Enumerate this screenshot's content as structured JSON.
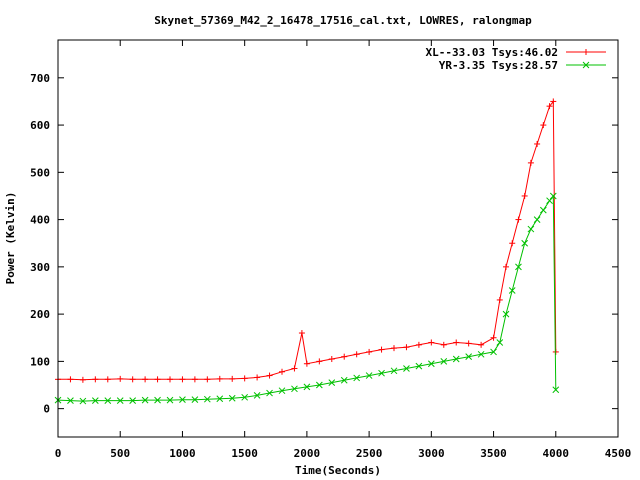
{
  "chart_data": {
    "type": "line",
    "title": "Skynet_57369_M42_2_16478_17516_cal.txt, LOWRES, ralongmap",
    "xlabel": "Time(Seconds)",
    "ylabel": "Power (Kelvin)",
    "xlim": [
      0,
      4500
    ],
    "ylim": [
      -60,
      780
    ],
    "xticks": [
      0,
      500,
      1000,
      1500,
      2000,
      2500,
      3000,
      3500,
      4000,
      4500
    ],
    "yticks": [
      0,
      100,
      200,
      300,
      400,
      500,
      600,
      700
    ],
    "legend_position": "top-right",
    "grid": false,
    "series": [
      {
        "name": "XL--33.03 Tsys:46.02",
        "color": "#ff0000",
        "marker": "plus",
        "x": [
          0,
          100,
          200,
          300,
          400,
          500,
          600,
          700,
          800,
          900,
          1000,
          1100,
          1200,
          1300,
          1400,
          1500,
          1600,
          1700,
          1800,
          1900,
          1960,
          2000,
          2100,
          2200,
          2300,
          2400,
          2500,
          2600,
          2700,
          2800,
          2900,
          3000,
          3100,
          3200,
          3300,
          3400,
          3500,
          3550,
          3600,
          3650,
          3700,
          3750,
          3800,
          3850,
          3900,
          3950,
          3980,
          4000
        ],
        "y": [
          62,
          62,
          61,
          62,
          62,
          63,
          62,
          62,
          62,
          62,
          62,
          62,
          62,
          63,
          63,
          64,
          66,
          70,
          78,
          85,
          160,
          95,
          100,
          105,
          110,
          115,
          120,
          125,
          128,
          130,
          135,
          140,
          135,
          140,
          138,
          135,
          150,
          230,
          300,
          350,
          400,
          450,
          520,
          560,
          600,
          640,
          650,
          120
        ]
      },
      {
        "name": "YR-3.35 Tsys:28.57",
        "color": "#00c000",
        "marker": "x",
        "x": [
          0,
          100,
          200,
          300,
          400,
          500,
          600,
          700,
          800,
          900,
          1000,
          1100,
          1200,
          1300,
          1400,
          1500,
          1600,
          1700,
          1800,
          1900,
          2000,
          2100,
          2200,
          2300,
          2400,
          2500,
          2600,
          2700,
          2800,
          2900,
          3000,
          3100,
          3200,
          3300,
          3400,
          3500,
          3550,
          3600,
          3650,
          3700,
          3750,
          3800,
          3850,
          3900,
          3950,
          3980,
          4000
        ],
        "y": [
          18,
          17,
          16,
          17,
          17,
          17,
          17,
          18,
          18,
          18,
          19,
          19,
          20,
          21,
          22,
          24,
          28,
          33,
          38,
          42,
          46,
          50,
          55,
          60,
          65,
          70,
          75,
          80,
          85,
          90,
          95,
          100,
          105,
          110,
          115,
          120,
          140,
          200,
          250,
          300,
          350,
          380,
          400,
          420,
          440,
          450,
          40
        ]
      }
    ]
  }
}
